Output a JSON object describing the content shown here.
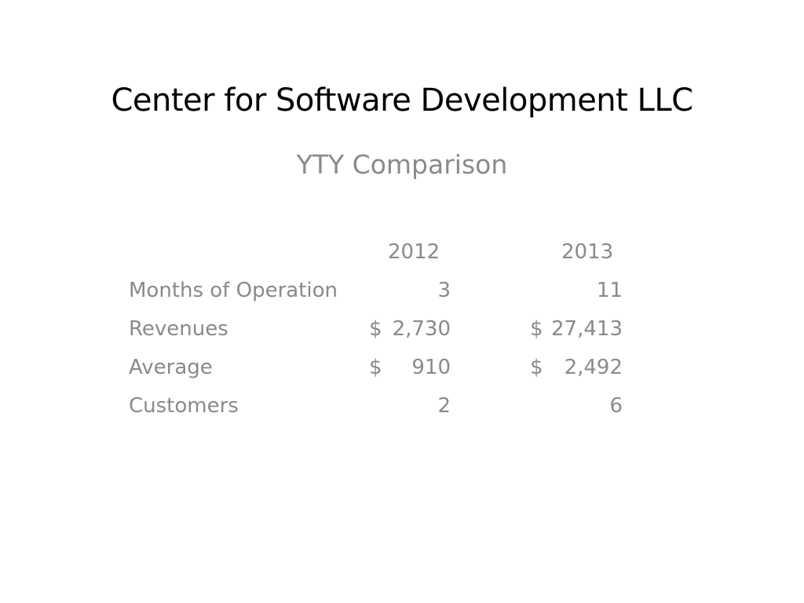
{
  "slide": {
    "title": "Center for Software Development LLC",
    "subtitle": "YTY Comparison"
  },
  "table": {
    "headers": [
      "2012",
      "2013"
    ],
    "rows": [
      {
        "label": "Months of Operation",
        "cells": [
          {
            "currency": "",
            "value": "3"
          },
          {
            "currency": "",
            "value": "11"
          }
        ]
      },
      {
        "label": "Revenues",
        "cells": [
          {
            "currency": "$",
            "value": "2,730"
          },
          {
            "currency": "$",
            "value": "27,413"
          }
        ]
      },
      {
        "label": "Average",
        "cells": [
          {
            "currency": "$",
            "value": "910"
          },
          {
            "currency": "$",
            "value": "2,492"
          }
        ]
      },
      {
        "label": "Customers",
        "cells": [
          {
            "currency": "",
            "value": "2"
          },
          {
            "currency": "",
            "value": "6"
          }
        ]
      }
    ]
  }
}
